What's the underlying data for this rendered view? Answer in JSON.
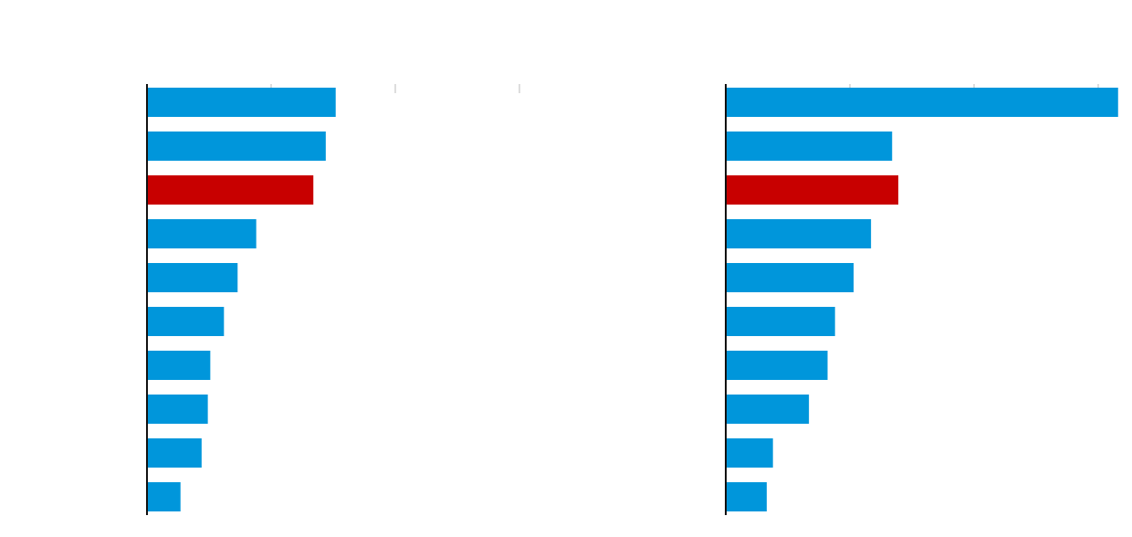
{
  "chart_data": [
    {
      "type": "bar",
      "orientation": "horizontal",
      "categories": [
        null,
        null,
        null,
        null,
        null,
        null,
        null,
        null,
        null,
        null
      ],
      "values": [
        1.52,
        1.44,
        1.34,
        0.88,
        0.73,
        0.62,
        0.51,
        0.49,
        0.44,
        0.27
      ],
      "colors": [
        "#0096db",
        "#0096db",
        "#c80000",
        "#0096db",
        "#0096db",
        "#0096db",
        "#0096db",
        "#0096db",
        "#0096db",
        "#0096db"
      ],
      "xlim": [
        0,
        3.2
      ],
      "xticks": [
        1,
        2,
        3
      ]
    },
    {
      "type": "bar",
      "orientation": "horizontal",
      "categories": [
        null,
        null,
        null,
        null,
        null,
        null,
        null,
        null,
        null,
        null
      ],
      "values": [
        3.16,
        1.34,
        1.39,
        1.17,
        1.03,
        0.88,
        0.82,
        0.67,
        0.38,
        0.33
      ],
      "colors": [
        "#0096db",
        "#0096db",
        "#c80000",
        "#0096db",
        "#0096db",
        "#0096db",
        "#0096db",
        "#0096db",
        "#0096db",
        "#0096db"
      ],
      "xlim": [
        0,
        3.2
      ],
      "xticks": [
        1,
        2,
        3
      ]
    }
  ]
}
